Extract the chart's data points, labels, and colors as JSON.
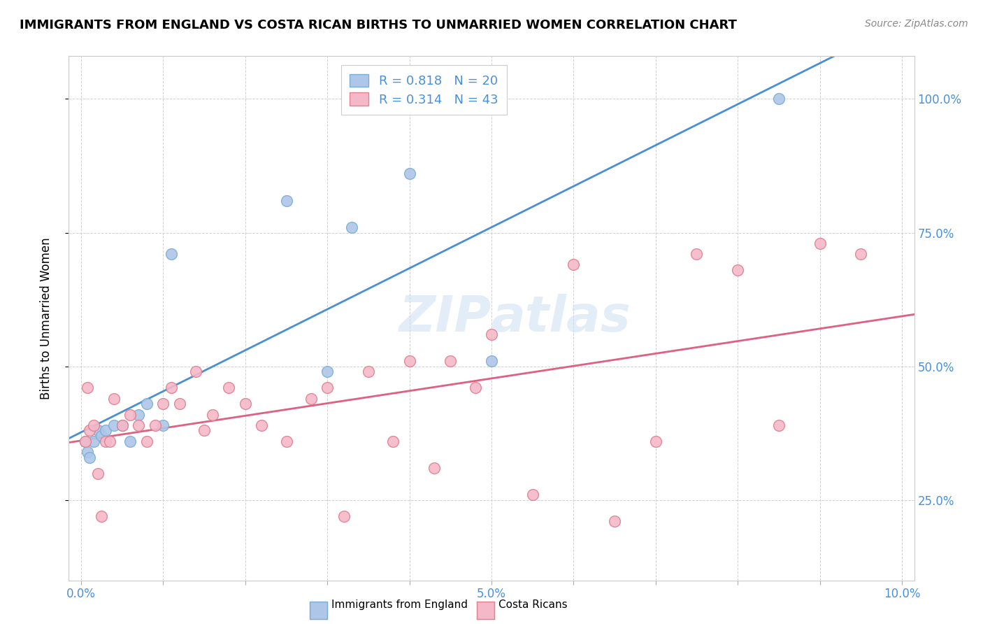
{
  "title": "IMMIGRANTS FROM ENGLAND VS COSTA RICAN BIRTHS TO UNMARRIED WOMEN CORRELATION CHART",
  "source": "Source: ZipAtlas.com",
  "ylabel": "Births to Unmarried Women",
  "england_color": "#aec6e8",
  "england_edge": "#7aafd4",
  "costarica_color": "#f4b8c8",
  "costarica_edge": "#e08090",
  "england_line_color": "#4a8fd4",
  "costarica_line_color": "#e06080",
  "watermark_color": "#c8ddf0",
  "R_england": 0.818,
  "N_england": 20,
  "R_costarica": 0.314,
  "N_costarica": 43,
  "england_x": [
    0.05,
    0.08,
    0.1,
    0.15,
    0.2,
    0.25,
    0.3,
    0.4,
    0.5,
    0.6,
    0.7,
    0.8,
    1.0,
    1.1,
    2.5,
    3.0,
    3.3,
    4.0,
    5.0,
    8.5
  ],
  "england_y": [
    36,
    34,
    33,
    36,
    38,
    37,
    38,
    39,
    39,
    36,
    41,
    43,
    39,
    71,
    81,
    49,
    76,
    86,
    51,
    100
  ],
  "costarica_x": [
    0.05,
    0.08,
    0.1,
    0.15,
    0.2,
    0.25,
    0.3,
    0.35,
    0.4,
    0.5,
    0.6,
    0.7,
    0.8,
    0.9,
    1.0,
    1.1,
    1.2,
    1.4,
    1.5,
    1.6,
    1.8,
    2.0,
    2.2,
    2.5,
    2.8,
    3.0,
    3.2,
    3.5,
    3.8,
    4.0,
    4.3,
    4.5,
    4.8,
    5.0,
    5.5,
    6.0,
    6.5,
    7.0,
    7.5,
    8.0,
    8.5,
    9.0,
    9.5
  ],
  "costarica_y": [
    36,
    46,
    38,
    39,
    30,
    22,
    36,
    36,
    44,
    39,
    41,
    39,
    36,
    39,
    43,
    46,
    43,
    49,
    38,
    41,
    46,
    43,
    39,
    36,
    44,
    46,
    22,
    49,
    36,
    51,
    31,
    51,
    46,
    56,
    26,
    69,
    21,
    36,
    71,
    68,
    39,
    73,
    71
  ],
  "xlim_min": -0.15,
  "xlim_max": 10.15,
  "ylim_min": 10,
  "ylim_max": 108,
  "xtick_vals": [
    0,
    1,
    2,
    3,
    4,
    5,
    6,
    7,
    8,
    9,
    10
  ],
  "xtick_labels": [
    "0.0%",
    "",
    "",
    "",
    "",
    "5.0%",
    "",
    "",
    "",
    "",
    "10.0%"
  ],
  "ytick_vals": [
    25,
    50,
    75,
    100
  ],
  "ytick_labels": [
    "25.0%",
    "50.0%",
    "75.0%",
    "100.0%"
  ]
}
